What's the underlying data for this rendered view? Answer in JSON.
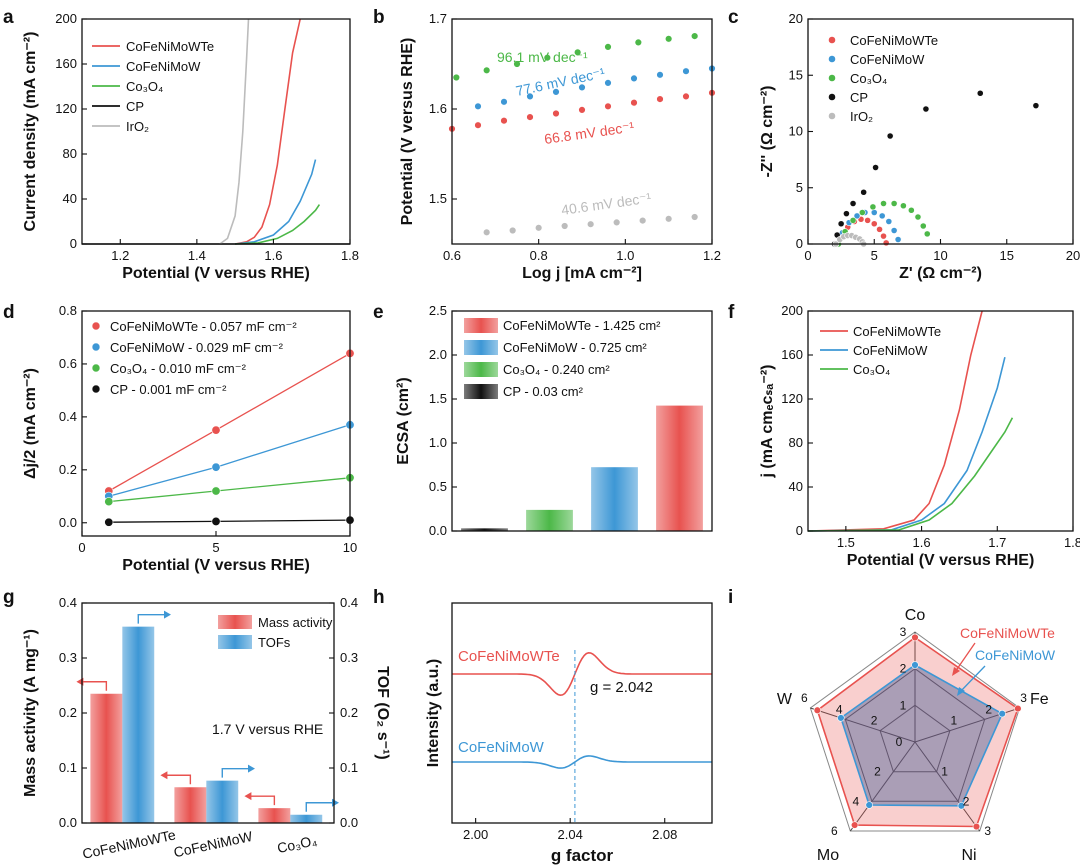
{
  "colors": {
    "red": "#e8524f",
    "blue": "#3d97d5",
    "green": "#4cb848",
    "black": "#111111",
    "gray": "#bcbcbc",
    "purple": "#6d5d8b"
  },
  "chart_data": [
    {
      "panel": "a",
      "type": "line",
      "xlabel": "Potential (V versus RHE)",
      "ylabel": "Current density (mA cm⁻²)",
      "xlim": [
        1.1,
        1.8
      ],
      "ylim": [
        0,
        200
      ],
      "xticks": [
        "1.2",
        "1.4",
        "1.6",
        "1.8"
      ],
      "yticks": [
        "0",
        "40",
        "80",
        "120",
        "160",
        "200"
      ],
      "series": [
        {
          "name": "CoFeNiMoWTe",
          "color": "red",
          "x": [
            1.5,
            1.53,
            1.55,
            1.57,
            1.59,
            1.61,
            1.63,
            1.65,
            1.67
          ],
          "y": [
            0,
            2,
            6,
            15,
            35,
            70,
            120,
            170,
            200
          ]
        },
        {
          "name": "CoFeNiMoW",
          "color": "blue",
          "x": [
            1.5,
            1.55,
            1.6,
            1.64,
            1.67,
            1.7,
            1.71
          ],
          "y": [
            0,
            2,
            8,
            20,
            38,
            62,
            75
          ]
        },
        {
          "name": "Co₃O₄",
          "color": "green",
          "x": [
            1.5,
            1.56,
            1.61,
            1.65,
            1.68,
            1.71,
            1.72
          ],
          "y": [
            0,
            1,
            5,
            12,
            20,
            30,
            35
          ]
        },
        {
          "name": "CP",
          "color": "black",
          "x": [
            1.1,
            1.8
          ],
          "y": [
            0,
            0
          ]
        },
        {
          "name": "IrO₂",
          "color": "gray",
          "x": [
            1.46,
            1.48,
            1.5,
            1.51,
            1.52,
            1.53,
            1.535
          ],
          "y": [
            0,
            5,
            25,
            55,
            100,
            165,
            200
          ]
        }
      ]
    },
    {
      "panel": "b",
      "type": "scatter",
      "xlabel": "Log j [mA cm⁻²]",
      "ylabel": "Potential (V versus RHE)",
      "xlim": [
        0.6,
        1.2
      ],
      "ylim": [
        1.45,
        1.7
      ],
      "xticks": [
        "0.6",
        "0.8",
        "1.0",
        "1.2"
      ],
      "yticks": [
        "1.5",
        "1.6",
        "1.7"
      ],
      "series": [
        {
          "name": "CoFeNiMoWTe",
          "color": "red",
          "label": "66.8 mV dec⁻¹",
          "x": [
            0.6,
            0.66,
            0.72,
            0.78,
            0.84,
            0.9,
            0.96,
            1.02,
            1.08,
            1.14,
            1.2
          ],
          "y": [
            1.578,
            1.582,
            1.587,
            1.591,
            1.595,
            1.599,
            1.603,
            1.607,
            1.611,
            1.614,
            1.618
          ]
        },
        {
          "name": "CoFeNiMoW",
          "color": "blue",
          "label": "77.6 mV dec⁻¹",
          "x": [
            0.66,
            0.72,
            0.78,
            0.84,
            0.9,
            0.96,
            1.02,
            1.08,
            1.14,
            1.2
          ],
          "y": [
            1.603,
            1.608,
            1.614,
            1.619,
            1.624,
            1.629,
            1.634,
            1.638,
            1.642,
            1.645
          ]
        },
        {
          "name": "Co₃O₄",
          "color": "green",
          "label": "96.1 mV dec⁻¹",
          "x": [
            0.61,
            0.68,
            0.75,
            0.82,
            0.89,
            0.96,
            1.03,
            1.1,
            1.16
          ],
          "y": [
            1.635,
            1.643,
            1.65,
            1.657,
            1.663,
            1.669,
            1.674,
            1.678,
            1.681
          ]
        },
        {
          "name": "IrO₂",
          "color": "gray",
          "label": "40.6 mV dec⁻¹",
          "x": [
            0.68,
            0.74,
            0.8,
            0.86,
            0.92,
            0.98,
            1.04,
            1.1,
            1.16
          ],
          "y": [
            1.463,
            1.465,
            1.468,
            1.47,
            1.472,
            1.474,
            1.476,
            1.478,
            1.48
          ]
        }
      ]
    },
    {
      "panel": "c",
      "type": "scatter",
      "xlabel": "Z' (Ω cm⁻²)",
      "ylabel": "-Z'' (Ω cm⁻²)",
      "xlim": [
        0,
        20
      ],
      "ylim": [
        0,
        20
      ],
      "xticks": [
        "0",
        "5",
        "10",
        "15",
        "20"
      ],
      "yticks": [
        "0",
        "5",
        "10",
        "15",
        "20"
      ],
      "series": [
        {
          "name": "CoFeNiMoWTe",
          "color": "red",
          "x": [
            2.2,
            2.6,
            3.0,
            3.5,
            4.0,
            4.5,
            5.0,
            5.4,
            5.7,
            5.9
          ],
          "y": [
            0,
            0.8,
            1.5,
            2.0,
            2.2,
            2.1,
            1.8,
            1.3,
            0.7,
            0.1
          ]
        },
        {
          "name": "CoFeNiMoW",
          "color": "blue",
          "x": [
            2.2,
            2.6,
            3.1,
            3.7,
            4.3,
            5.0,
            5.6,
            6.1,
            6.5,
            6.8
          ],
          "y": [
            0,
            1.0,
            1.9,
            2.5,
            2.8,
            2.8,
            2.5,
            2.0,
            1.2,
            0.4
          ]
        },
        {
          "name": "Co₃O₄",
          "color": "green",
          "x": [
            2.3,
            2.8,
            3.4,
            4.1,
            4.9,
            5.7,
            6.5,
            7.2,
            7.8,
            8.3,
            8.7,
            9.0
          ],
          "y": [
            0,
            1.1,
            2.1,
            2.8,
            3.3,
            3.6,
            3.6,
            3.4,
            3.0,
            2.4,
            1.6,
            0.9
          ]
        },
        {
          "name": "CP",
          "color": "black",
          "x": [
            2.0,
            2.2,
            2.5,
            2.9,
            3.4,
            4.2,
            5.1,
            6.2,
            8.9,
            13.0,
            17.2
          ],
          "y": [
            0,
            0.8,
            1.8,
            2.7,
            3.6,
            4.6,
            6.8,
            9.6,
            12.0,
            13.4,
            12.3
          ]
        },
        {
          "name": "IrO₂",
          "color": "gray",
          "x": [
            2.1,
            2.4,
            2.7,
            3.0,
            3.3,
            3.6,
            3.9,
            4.1,
            4.2
          ],
          "y": [
            0,
            0.4,
            0.65,
            0.75,
            0.75,
            0.6,
            0.45,
            0.2,
            0
          ]
        }
      ]
    },
    {
      "panel": "d",
      "type": "scatter",
      "xlabel": "Potential (V versus RHE)",
      "ylabel": "Δj/2 (mA cm⁻²)",
      "xlim": [
        0,
        10
      ],
      "ylim": [
        -0.05,
        0.8
      ],
      "xticks": [
        "0",
        "5",
        "10"
      ],
      "yticks": [
        "0.0",
        "0.2",
        "0.4",
        "0.6",
        "0.8"
      ],
      "series": [
        {
          "name": "CoFeNiMoWTe - 0.057 mF cm⁻²",
          "color": "red",
          "x": [
            1,
            5,
            10
          ],
          "y": [
            0.12,
            0.35,
            0.64
          ]
        },
        {
          "name": "CoFeNiMoW - 0.029 mF cm⁻²",
          "color": "blue",
          "x": [
            1,
            5,
            10
          ],
          "y": [
            0.1,
            0.21,
            0.37
          ]
        },
        {
          "name": "Co₃O₄ - 0.010 mF cm⁻²",
          "color": "green",
          "x": [
            1,
            5,
            10
          ],
          "y": [
            0.08,
            0.12,
            0.17
          ]
        },
        {
          "name": "CP - 0.001 mF cm⁻²",
          "color": "black",
          "x": [
            1,
            5,
            10
          ],
          "y": [
            0.002,
            0.005,
            0.01
          ]
        }
      ]
    },
    {
      "panel": "e",
      "type": "bar",
      "ylabel": "ECSA (cm²)",
      "ylim": [
        0,
        2.5
      ],
      "yticks": [
        "0.0",
        "0.5",
        "1.0",
        "1.5",
        "2.0",
        "2.5"
      ],
      "categories": [
        "CP",
        "Co₃O₄",
        "CoFeNiMoW",
        "CoFeNiMoWTe"
      ],
      "values": [
        0.03,
        0.24,
        0.725,
        1.425
      ],
      "colors": [
        "black",
        "green",
        "blue",
        "red"
      ],
      "legend": [
        "CoFeNiMoWTe - 1.425 cm²",
        "CoFeNiMoW - 0.725 cm²",
        "Co₃O₄ - 0.240 cm²",
        "CP - 0.03 cm²"
      ]
    },
    {
      "panel": "f",
      "type": "line",
      "xlabel": "Potential (V versus RHE)",
      "ylabel": "j (mA cmₑᴄₛₐ⁻²)",
      "xlim": [
        1.45,
        1.8
      ],
      "ylim": [
        0,
        200
      ],
      "xticks": [
        "1.5",
        "1.6",
        "1.7",
        "1.8"
      ],
      "yticks": [
        "0",
        "40",
        "80",
        "120",
        "160",
        "200"
      ],
      "series": [
        {
          "name": "CoFeNiMoWTe",
          "color": "red",
          "x": [
            1.45,
            1.55,
            1.59,
            1.61,
            1.63,
            1.65,
            1.665,
            1.68
          ],
          "y": [
            0,
            2,
            10,
            25,
            60,
            110,
            160,
            200
          ]
        },
        {
          "name": "CoFeNiMoW",
          "color": "blue",
          "x": [
            1.45,
            1.56,
            1.6,
            1.63,
            1.66,
            1.68,
            1.7,
            1.71
          ],
          "y": [
            0,
            1,
            10,
            25,
            55,
            90,
            130,
            158
          ]
        },
        {
          "name": "Co₃O₄",
          "color": "green",
          "x": [
            1.45,
            1.57,
            1.61,
            1.64,
            1.67,
            1.69,
            1.71,
            1.72
          ],
          "y": [
            0,
            1,
            10,
            25,
            50,
            70,
            90,
            103
          ]
        }
      ]
    },
    {
      "panel": "g",
      "type": "bar",
      "ylabel": "Mass activity (A mg⁻¹)",
      "y2label": "TOF (O₂ s⁻¹)",
      "ylim": [
        0,
        0.4
      ],
      "yticks": [
        "0.0",
        "0.1",
        "0.2",
        "0.3",
        "0.4"
      ],
      "categories": [
        "CoFeNiMoWTe",
        "CoFeNiMoW",
        "Co₃O₄"
      ],
      "series": [
        {
          "name": "Mass activity",
          "color": "red",
          "values": [
            0.235,
            0.065,
            0.027
          ]
        },
        {
          "name": "TOFs",
          "color": "blue",
          "values": [
            0.357,
            0.077,
            0.015
          ]
        }
      ],
      "annotation": "1.7 V versus RHE"
    },
    {
      "panel": "h",
      "type": "line",
      "xlabel": "g factor",
      "ylabel": "Intensity (a.u.)",
      "xlim": [
        1.99,
        2.1
      ],
      "xticks": [
        "2.00",
        "2.04",
        "2.08"
      ],
      "annotation": "g = 2.042",
      "series": [
        {
          "name": "CoFeNiMoWTe",
          "color": "red"
        },
        {
          "name": "CoFeNiMoW",
          "color": "blue"
        }
      ]
    },
    {
      "panel": "i",
      "type": "radar",
      "axes": [
        "Co",
        "Fe",
        "Ni",
        "Mo",
        "W"
      ],
      "axis_max": [
        "3",
        "3",
        "3",
        "6",
        "6"
      ],
      "axis_ticks": [
        [
          "1",
          "2",
          "3"
        ],
        [
          "1",
          "2",
          "3"
        ],
        [
          "1",
          "2",
          "3"
        ],
        [
          "2",
          "4",
          "6"
        ],
        [
          "2",
          "4",
          "6"
        ]
      ],
      "center": "0",
      "series": [
        {
          "name": "CoFeNiMoWTe",
          "color": "red",
          "values": [
            2.85,
            2.95,
            2.85,
            5.6,
            5.6
          ]
        },
        {
          "name": "CoFeNiMoW",
          "color": "blue",
          "values": [
            2.1,
            2.5,
            2.15,
            4.25,
            4.25
          ]
        }
      ]
    }
  ],
  "panel_letters": [
    "a",
    "b",
    "c",
    "d",
    "e",
    "f",
    "g",
    "h",
    "i"
  ],
  "text": {
    "a_title": "",
    "b_labels": [
      "96.1 mV dec⁻¹",
      "77.6 mV dec⁻¹",
      "66.8 mV dec⁻¹",
      "40.6 mV dec⁻¹"
    ]
  }
}
